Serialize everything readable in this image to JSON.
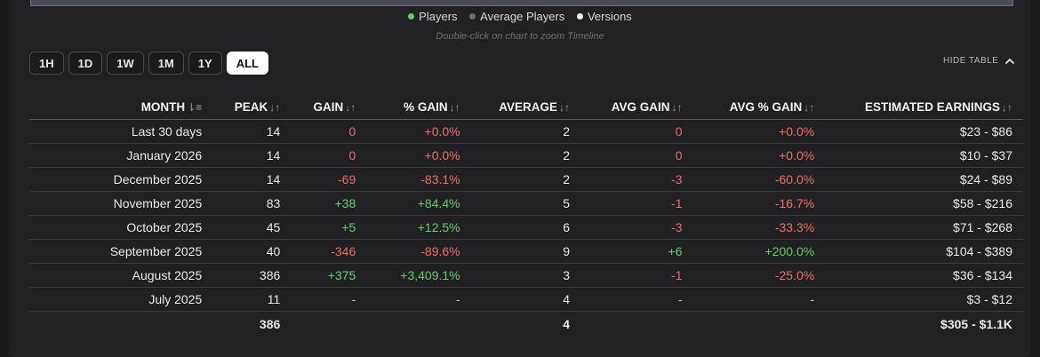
{
  "legend": [
    {
      "label": "Players",
      "color": "#5fd068"
    },
    {
      "label": "Average Players",
      "color": "#6d6d72"
    },
    {
      "label": "Versions",
      "color": "#ffffff"
    }
  ],
  "hint": "Double-click on chart to zoom Timeline",
  "ranges": [
    "1H",
    "1D",
    "1W",
    "1M",
    "1Y",
    "ALL"
  ],
  "active_range": "ALL",
  "hide_table": "HIDE TABLE",
  "colors": {
    "negative": "#f06b6b",
    "positive": "#5fd068"
  },
  "table": {
    "headers": [
      "MONTH",
      "PEAK",
      "GAIN",
      "% GAIN",
      "AVERAGE",
      "AVG GAIN",
      "AVG % GAIN",
      "ESTIMATED EARNINGS"
    ],
    "rows": [
      [
        "Last 30 days",
        "14",
        "0",
        "+0.0%",
        "2",
        "0",
        "+0.0%",
        "$23  -  $86"
      ],
      [
        "January 2026",
        "14",
        "0",
        "+0.0%",
        "2",
        "0",
        "+0.0%",
        "$10  -  $37"
      ],
      [
        "December 2025",
        "14",
        "-69",
        "-83.1%",
        "2",
        "-3",
        "-60.0%",
        "$24  -  $89"
      ],
      [
        "November 2025",
        "83",
        "+38",
        "+84.4%",
        "5",
        "-1",
        "-16.7%",
        "$58  -  $216"
      ],
      [
        "October 2025",
        "45",
        "+5",
        "+12.5%",
        "6",
        "-3",
        "-33.3%",
        "$71  -  $268"
      ],
      [
        "September 2025",
        "40",
        "-346",
        "-89.6%",
        "9",
        "+6",
        "+200.0%",
        "$104  -  $389"
      ],
      [
        "August 2025",
        "386",
        "+375",
        "+3,409.1%",
        "3",
        "-1",
        "-25.0%",
        "$36  -  $134"
      ],
      [
        "July 2025",
        "11",
        "-",
        "-",
        "4",
        "-",
        "-",
        "$3  -  $12"
      ]
    ],
    "total": [
      "",
      "386",
      "",
      "",
      "4",
      "",
      "",
      "$305  -  $1.1K"
    ]
  }
}
